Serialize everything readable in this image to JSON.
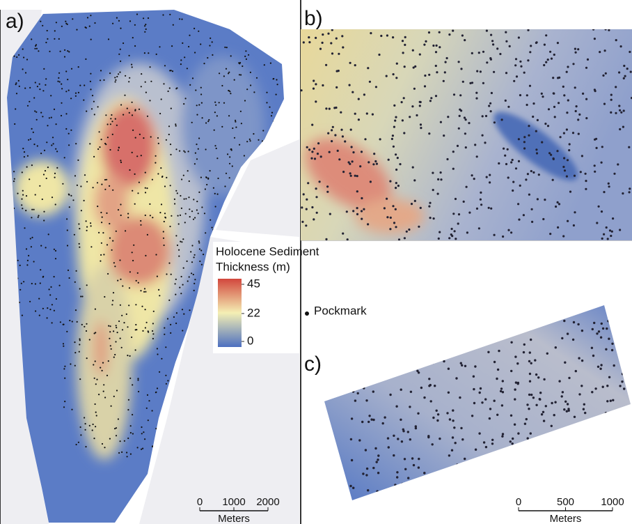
{
  "panels": {
    "a": {
      "label": "a)",
      "scale_bar": {
        "ticks": [
          0,
          1000,
          2000
        ],
        "unit": "Meters"
      }
    },
    "b": {
      "label": "b)"
    },
    "c": {
      "label": "c)",
      "scale_bar": {
        "ticks": [
          0,
          500,
          1000
        ],
        "unit": "Meters"
      }
    }
  },
  "legend": {
    "title_lines": [
      "Holocene Sediment",
      "Thickness (m)"
    ],
    "colorbar": {
      "range": [
        0,
        45
      ],
      "ticks": [
        45,
        22,
        0
      ]
    },
    "pockmark": "Pockmark"
  }
}
